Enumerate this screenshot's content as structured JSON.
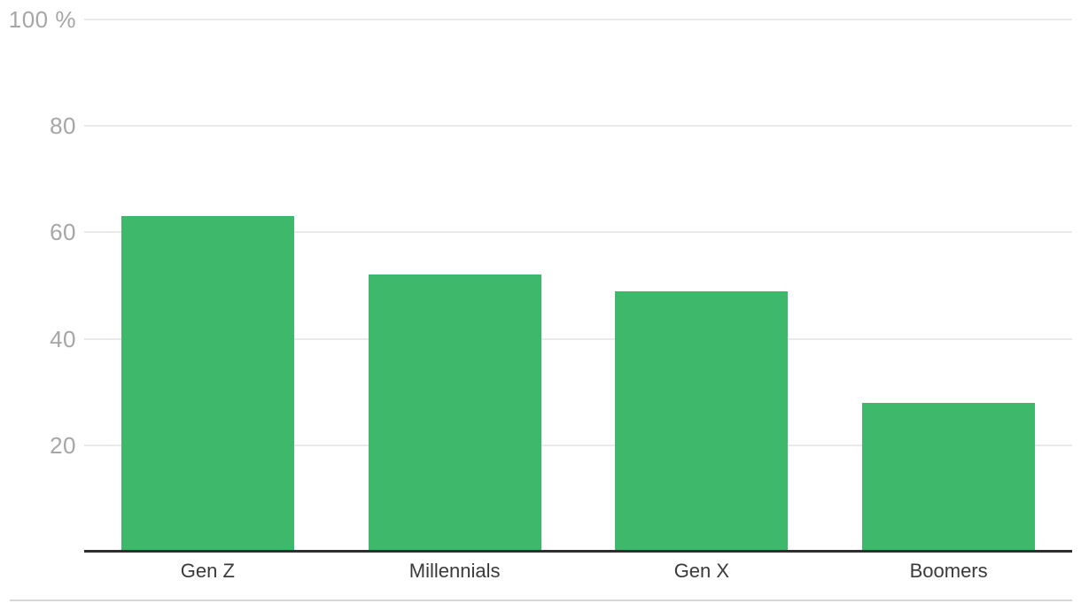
{
  "chart_data": {
    "type": "bar",
    "title": "",
    "xlabel": "",
    "ylabel": "",
    "categories": [
      "Gen Z",
      "Millennials",
      "Gen X",
      "Boomers"
    ],
    "values": [
      63,
      52,
      49,
      28
    ],
    "unit": "%",
    "ylim": [
      0,
      100
    ],
    "yticks": [
      20,
      40,
      60,
      80,
      100
    ],
    "ytick_labels": [
      "20",
      "40",
      "60",
      "80",
      "100 %"
    ],
    "grid": true,
    "legend": "none",
    "colors": {
      "bar": "#3eb96b",
      "gridline": "#e9e9e9",
      "axis_line": "#2e2e2e",
      "ytick_label": "#a6a6a6",
      "category_label": "#3a3a3a",
      "bottom_divider": "#d6d6d6",
      "background": "#ffffff"
    }
  }
}
